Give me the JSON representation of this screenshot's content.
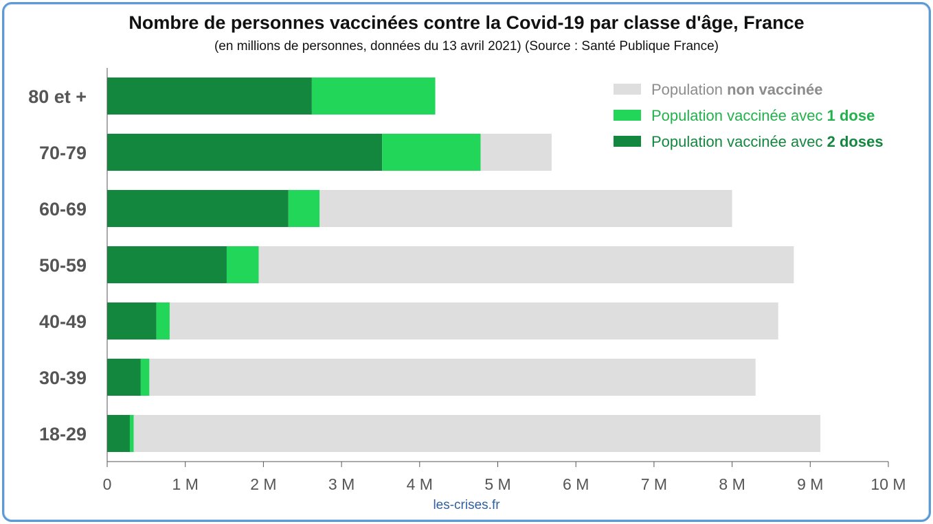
{
  "title": "Nombre de personnes vaccinées contre la Covid-19 par classe d'âge, France",
  "subtitle": "(en millions de personnes, données du 13 avril 2021)  (Source : Santé Publique France)",
  "footer": "les-crises.fr",
  "colors": {
    "non_vaccinee": "#dedede",
    "une_dose": "#22d65a",
    "deux_doses": "#14873e",
    "axis": "#555555",
    "frame": "#5b9bd5"
  },
  "chart_data": {
    "type": "bar",
    "orientation": "horizontal",
    "stacked": true,
    "categories": [
      "80 et +",
      "70-79",
      "60-69",
      "50-59",
      "40-49",
      "30-39",
      "18-29"
    ],
    "series": [
      {
        "key": "deux_doses",
        "values": [
          2.62,
          3.52,
          2.32,
          1.53,
          0.63,
          0.43,
          0.29
        ]
      },
      {
        "key": "une_dose",
        "values": [
          1.58,
          1.26,
          0.4,
          0.41,
          0.17,
          0.11,
          0.05
        ]
      },
      {
        "key": "non_vaccinee",
        "values": [
          0.0,
          0.91,
          5.28,
          6.85,
          7.79,
          7.76,
          8.79
        ]
      }
    ],
    "xlim": [
      0,
      10
    ],
    "xticks": [
      0,
      1,
      2,
      3,
      4,
      5,
      6,
      7,
      8,
      9,
      10
    ],
    "xtick_labels": [
      "0",
      "1 M",
      "2 M",
      "3 M",
      "4 M",
      "5 M",
      "6 M",
      "7 M",
      "8 M",
      "9 M",
      "10 M"
    ],
    "grid": false,
    "legend": {
      "placement": "top-right",
      "entries": [
        {
          "key": "non_vaccinee",
          "text_plain": "Population ",
          "text_bold": "non vaccinée",
          "text_color": "#8c8c8c"
        },
        {
          "key": "une_dose",
          "text_plain": "Population vaccinée avec ",
          "text_bold": "1 dose",
          "text_color": "#22b14c"
        },
        {
          "key": "deux_doses",
          "text_plain": "Population vaccinée avec ",
          "text_bold": "2 doses",
          "text_color": "#14873e"
        }
      ]
    }
  }
}
